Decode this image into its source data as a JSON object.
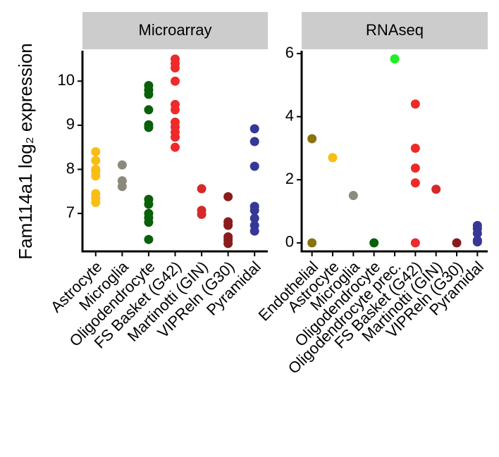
{
  "chart_data": [
    {
      "type": "strip",
      "title": "Microarray",
      "ylabel": "Fam114a1 log₂ expression",
      "ylim": [
        6.14,
        10.69
      ],
      "yticks": [
        7,
        8,
        9,
        10
      ],
      "series": [
        {
          "name": "Astrocyte",
          "color": "#f9bd14",
          "values": [
            8.4,
            8.2,
            8.0,
            7.95,
            7.85,
            7.45,
            7.35,
            7.25
          ]
        },
        {
          "name": "Microglia",
          "color": "#8c897d",
          "values": [
            8.1,
            7.74,
            7.61
          ]
        },
        {
          "name": "Oligodendrocyte",
          "color": "#0a600a",
          "values": [
            9.9,
            9.8,
            9.7,
            9.35,
            9.01,
            8.95,
            7.32,
            7.21,
            7.0,
            6.9,
            6.8,
            6.41
          ]
        },
        {
          "name": "FS Basket (G42)",
          "color": "#ee2a2a",
          "values": [
            10.5,
            10.4,
            10.3,
            10.0,
            9.47,
            9.35,
            9.07,
            8.96,
            8.84,
            8.73,
            8.5
          ]
        },
        {
          "name": "Martinotti (GIN)",
          "color": "#d42a2a",
          "values": [
            7.56,
            7.07,
            6.98
          ]
        },
        {
          "name": "VIPReln (G30)",
          "color": "#8a1c1c",
          "values": [
            7.38,
            6.81,
            6.73,
            6.47,
            6.4,
            6.32
          ]
        },
        {
          "name": "Pyramidal",
          "color": "#353897",
          "values": [
            8.92,
            8.63,
            8.07,
            7.16,
            7.07,
            6.89,
            6.73,
            6.6
          ]
        }
      ]
    },
    {
      "type": "strip",
      "title": "RNAseq",
      "ylim": [
        -0.27,
        6.09
      ],
      "yticks": [
        0,
        2,
        4,
        6
      ],
      "series": [
        {
          "name": "Endothelial",
          "color": "#8a720e",
          "values": [
            3.3,
            0
          ]
        },
        {
          "name": "Astrocyte",
          "color": "#f9bd14",
          "values": [
            2.7
          ]
        },
        {
          "name": "Microglia",
          "color": "#8c897d",
          "values": [
            1.5
          ]
        },
        {
          "name": "Oligodendrocyte",
          "color": "#0a600a",
          "values": [
            0
          ]
        },
        {
          "name": "Oligodendrocyte prec.",
          "color": "#1ef01e",
          "values": [
            5.83
          ]
        },
        {
          "name": "FS Basket (G42)",
          "color": "#ee2a2a",
          "values": [
            4.4,
            3.0,
            2.37,
            1.9,
            0
          ]
        },
        {
          "name": "Martinotti (GIN)",
          "color": "#d42a2a",
          "values": [
            1.7
          ]
        },
        {
          "name": "VIPReln (G30)",
          "color": "#8a1c1c",
          "values": [
            0
          ]
        },
        {
          "name": "Pyramidal",
          "color": "#353897",
          "values": [
            0.55,
            0.45,
            0.3,
            0.08,
            0.03
          ]
        }
      ]
    }
  ]
}
